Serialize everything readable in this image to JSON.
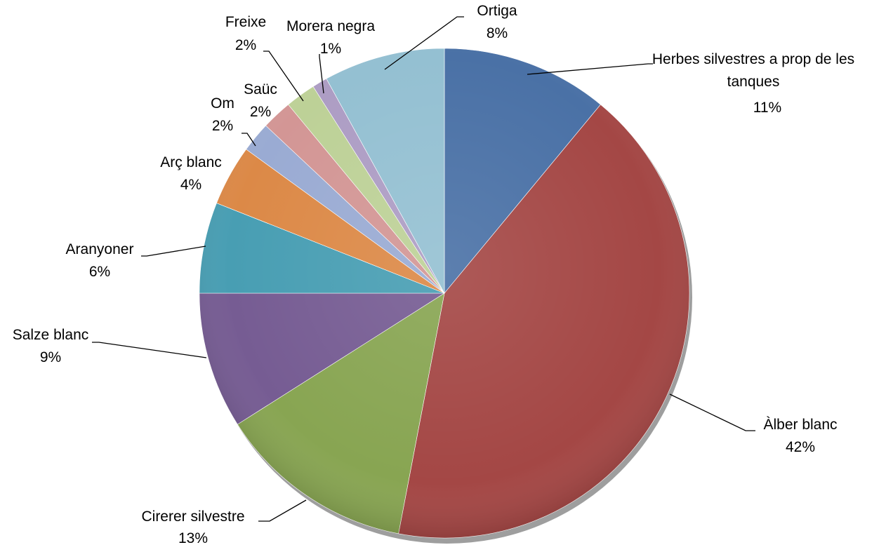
{
  "chart_data": {
    "type": "pie",
    "title": "",
    "start_angle_deg": 0,
    "direction": "clockwise",
    "slices": [
      {
        "label_lines": [
          "Herbes silvestres a prop de les",
          "tanques"
        ],
        "pct_label": "11%",
        "value": 11,
        "color": "#4a71a6"
      },
      {
        "label_lines": [
          "Àlber blanc"
        ],
        "pct_label": "42%",
        "value": 42,
        "color": "#a44745"
      },
      {
        "label_lines": [
          "Cirerer silvestre"
        ],
        "pct_label": "13%",
        "value": 13,
        "color": "#88a552"
      },
      {
        "label_lines": [
          "Salze blanc"
        ],
        "pct_label": "9%",
        "value": 9,
        "color": "#765c93"
      },
      {
        "label_lines": [
          "Aranyoner"
        ],
        "pct_label": "6%",
        "value": 6,
        "color": "#489eb3"
      },
      {
        "label_lines": [
          "Arç blanc"
        ],
        "pct_label": "4%",
        "value": 4,
        "color": "#dc8947"
      },
      {
        "label_lines": [
          "Om"
        ],
        "pct_label": "2%",
        "value": 2,
        "color": "#9aabd3"
      },
      {
        "label_lines": [
          "Saüc"
        ],
        "pct_label": "2%",
        "value": 2,
        "color": "#d39695"
      },
      {
        "label_lines": [
          "Freixe"
        ],
        "pct_label": "2%",
        "value": 2,
        "color": "#bdd197"
      },
      {
        "label_lines": [
          "Morera negra"
        ],
        "pct_label": "1%",
        "value": 1,
        "color": "#ad9dc4"
      },
      {
        "label_lines": [
          "Ortiga"
        ],
        "pct_label": "8%",
        "value": 8,
        "color": "#94c0d2"
      }
    ],
    "legend": "none"
  }
}
